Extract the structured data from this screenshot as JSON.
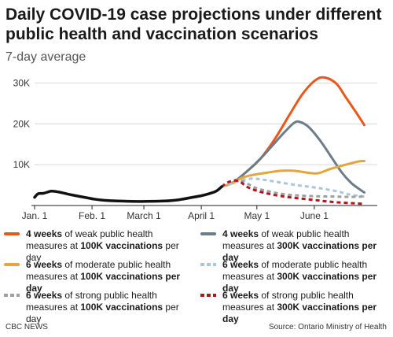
{
  "header": {
    "title": "Daily COVID-19 case projections under different public health and vaccination scenarios",
    "subtitle": "7-day average"
  },
  "footer": {
    "credit": "CBC NEWS",
    "source": "Source: Ontario Ministry of Health"
  },
  "colors": {
    "orange": "#e8581c",
    "slate": "#6b7d88",
    "gold": "#e3a53c",
    "lightblue": "#a9c6dc",
    "gray": "#a0a0a0",
    "darkred": "#b3151f",
    "black": "#111111"
  },
  "legend": [
    {
      "key": "weak100",
      "pre": "4 weeks",
      "mid": " of weak public health measures at ",
      "bold": "100K vaccinations",
      "post": " per day",
      "color": "#e8581c",
      "dashed": false
    },
    {
      "key": "weak300",
      "pre": "4 weeks",
      "mid": " of weak public health measures at ",
      "bold": "300K vaccinations per day",
      "post": "",
      "color": "#6b7d88",
      "dashed": false
    },
    {
      "key": "mod100",
      "pre": "6 weeks",
      "mid": " of moderate public health measures at ",
      "bold": "100K vaccinations per day",
      "post": "",
      "color": "#e3a53c",
      "dashed": false
    },
    {
      "key": "mod300",
      "pre": "6 weeks",
      "mid": " of moderate public health measures at ",
      "bold": "300K vaccinations per day",
      "post": "",
      "color": "#a9c6dc",
      "dashed": true
    },
    {
      "key": "strong100",
      "pre": "6 weeks",
      "mid": " of strong public health measures at ",
      "bold": "100K vaccinations",
      "post": " per day",
      "color": "#a0a0a0",
      "dashed": true
    },
    {
      "key": "strong300",
      "pre": "6 weeks",
      "mid": " of strong public health measures at ",
      "bold": "300K vaccinations per day",
      "post": "",
      "color": "#b3151f",
      "dashed": true
    }
  ],
  "chart_data": {
    "type": "line",
    "title": "Daily COVID-19 case projections under different public health and vaccination scenarios",
    "subtitle": "7-day average",
    "xlabel": "",
    "ylabel": "",
    "x_ticks": [
      {
        "day": 0,
        "label": "Jan. 1"
      },
      {
        "day": 31,
        "label": "Feb. 1"
      },
      {
        "day": 59,
        "label": "March 1"
      },
      {
        "day": 90,
        "label": "April 1"
      },
      {
        "day": 120,
        "label": "May 1"
      },
      {
        "day": 151,
        "label": "June 1"
      }
    ],
    "y_ticks": [
      {
        "value": 10000,
        "label": "10K"
      },
      {
        "value": 20000,
        "label": "20K"
      },
      {
        "value": 30000,
        "label": "30K"
      }
    ],
    "xlim": [
      0,
      185
    ],
    "ylim": [
      0,
      32000
    ],
    "grid": true,
    "series": [
      {
        "name": "Actual",
        "color": "#111111",
        "dashed": false,
        "points": [
          [
            0,
            2000
          ],
          [
            2,
            2900
          ],
          [
            5,
            3000
          ],
          [
            9,
            3500
          ],
          [
            13,
            3300
          ],
          [
            20,
            2600
          ],
          [
            27,
            2000
          ],
          [
            33,
            1500
          ],
          [
            40,
            1200
          ],
          [
            50,
            1050
          ],
          [
            60,
            1000
          ],
          [
            70,
            1100
          ],
          [
            77,
            1350
          ],
          [
            84,
            1900
          ],
          [
            90,
            2400
          ],
          [
            95,
            3000
          ],
          [
            98,
            3500
          ],
          [
            101,
            4600
          ]
        ]
      },
      {
        "name": "4 weeks of weak public health measures at 100K vaccinations per day",
        "color": "#e8581c",
        "dashed": false,
        "points": [
          [
            101,
            4600
          ],
          [
            107,
            5600
          ],
          [
            115,
            8500
          ],
          [
            122,
            11500
          ],
          [
            130,
            16500
          ],
          [
            138,
            22500
          ],
          [
            145,
            27500
          ],
          [
            152,
            30800
          ],
          [
            157,
            31300
          ],
          [
            163,
            29800
          ],
          [
            168,
            26500
          ],
          [
            174,
            22500
          ],
          [
            178,
            19700
          ]
        ]
      },
      {
        "name": "4 weeks of weak public health measures at 300K vaccinations per day",
        "color": "#6b7d88",
        "dashed": false,
        "points": [
          [
            101,
            4600
          ],
          [
            107,
            5600
          ],
          [
            115,
            8500
          ],
          [
            122,
            11500
          ],
          [
            130,
            15500
          ],
          [
            135,
            18000
          ],
          [
            140,
            20200
          ],
          [
            143,
            20500
          ],
          [
            148,
            19200
          ],
          [
            154,
            16000
          ],
          [
            160,
            12000
          ],
          [
            166,
            8000
          ],
          [
            171,
            5500
          ],
          [
            176,
            3800
          ],
          [
            178,
            3200
          ]
        ]
      },
      {
        "name": "6 weeks of moderate public health measures at 100K vaccinations per day",
        "color": "#e3a53c",
        "dashed": false,
        "points": [
          [
            101,
            4600
          ],
          [
            107,
            5500
          ],
          [
            112,
            6800
          ],
          [
            118,
            7500
          ],
          [
            125,
            8000
          ],
          [
            133,
            8500
          ],
          [
            140,
            8500
          ],
          [
            148,
            8000
          ],
          [
            153,
            7900
          ],
          [
            160,
            9000
          ],
          [
            168,
            10000
          ],
          [
            175,
            10800
          ],
          [
            178,
            10900
          ]
        ]
      },
      {
        "name": "6 weeks of moderate public health measures at 300K vaccinations per day",
        "color": "#a9c6dc",
        "dashed": true,
        "points": [
          [
            101,
            4600
          ],
          [
            107,
            5500
          ],
          [
            112,
            6200
          ],
          [
            118,
            6600
          ],
          [
            125,
            6200
          ],
          [
            133,
            5600
          ],
          [
            143,
            4900
          ],
          [
            153,
            4300
          ],
          [
            163,
            3500
          ],
          [
            170,
            2700
          ],
          [
            178,
            2200
          ]
        ]
      },
      {
        "name": "6 weeks of strong public health measures at 100K vaccinations per day",
        "color": "#a0a0a0",
        "dashed": true,
        "points": [
          [
            101,
            4600
          ],
          [
            105,
            5800
          ],
          [
            110,
            6300
          ],
          [
            115,
            5300
          ],
          [
            120,
            4200
          ],
          [
            128,
            3300
          ],
          [
            138,
            2600
          ],
          [
            150,
            2300
          ],
          [
            162,
            2200
          ],
          [
            170,
            2100
          ],
          [
            178,
            2200
          ]
        ]
      },
      {
        "name": "6 weeks of strong public health measures at 300K vaccinations per day",
        "color": "#b3151f",
        "dashed": true,
        "points": [
          [
            101,
            4600
          ],
          [
            105,
            5800
          ],
          [
            110,
            6000
          ],
          [
            115,
            4500
          ],
          [
            120,
            3600
          ],
          [
            128,
            2700
          ],
          [
            138,
            2000
          ],
          [
            150,
            1400
          ],
          [
            160,
            900
          ],
          [
            170,
            600
          ],
          [
            178,
            400
          ]
        ]
      }
    ]
  }
}
